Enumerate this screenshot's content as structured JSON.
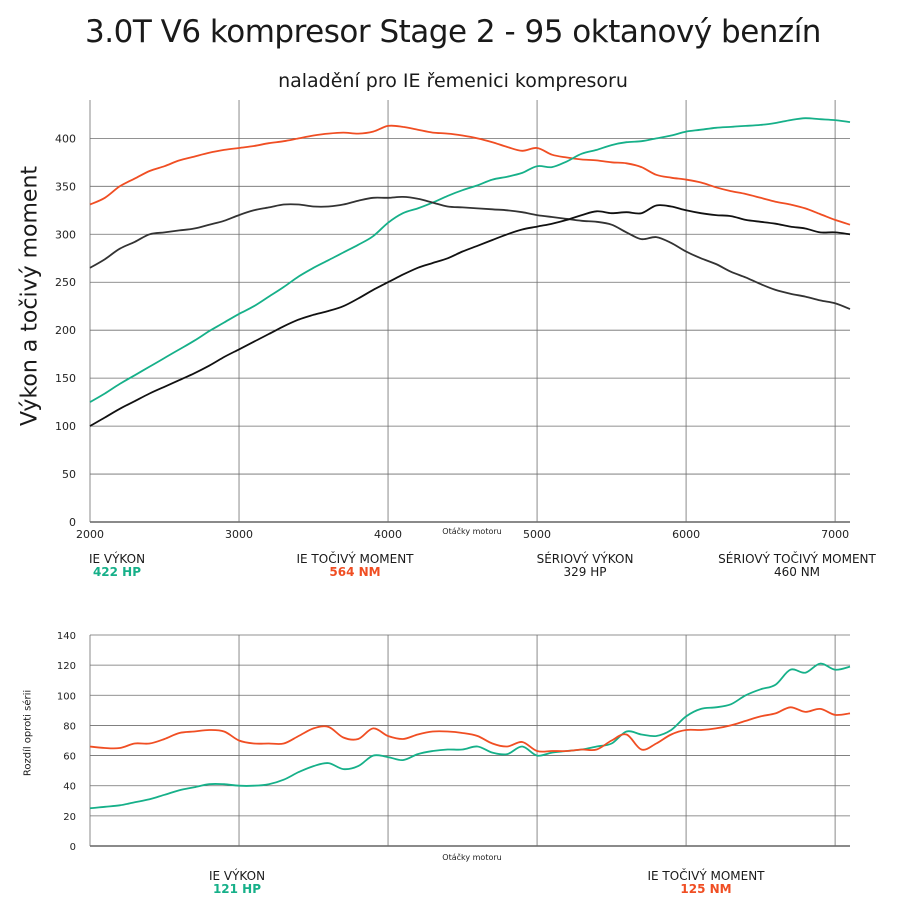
{
  "title": "3.0T V6 kompresor Stage 2 - 95 oktanový benzín",
  "subtitle": "naladění pro IE řemenici kompresoru",
  "chart_data": [
    {
      "type": "line",
      "ylabel": "Výkon a točivý moment",
      "xlabel": "Otáčky motoru",
      "xlim": [
        2000,
        7100
      ],
      "ylim": [
        0,
        440
      ],
      "xticks": [
        2000,
        3000,
        4000,
        5000,
        6000,
        7000
      ],
      "yticks": [
        0,
        50,
        100,
        150,
        200,
        250,
        300,
        350,
        400
      ],
      "grid": true,
      "colors": {
        "ie_power": "#16b089",
        "ie_torque": "#f04e23",
        "stock_power": "#111111",
        "stock_torque": "#333333"
      },
      "series": [
        {
          "name": "IE torque",
          "color_key": "ie_torque",
          "x": [
            2000,
            2100,
            2200,
            2300,
            2400,
            2500,
            2600,
            2700,
            2800,
            2900,
            3000,
            3100,
            3200,
            3300,
            3400,
            3500,
            3600,
            3700,
            3800,
            3900,
            4000,
            4100,
            4200,
            4300,
            4400,
            4500,
            4600,
            4700,
            4800,
            4900,
            5000,
            5100,
            5200,
            5300,
            5400,
            5500,
            5600,
            5700,
            5800,
            5900,
            6000,
            6100,
            6200,
            6300,
            6400,
            6500,
            6600,
            6700,
            6800,
            6900,
            7000,
            7100
          ],
          "y": [
            331,
            338,
            350,
            358,
            366,
            371,
            377,
            381,
            385,
            388,
            390,
            392,
            395,
            397,
            400,
            403,
            405,
            406,
            405,
            407,
            413,
            412,
            409,
            406,
            405,
            403,
            400,
            396,
            391,
            387,
            390,
            383,
            380,
            378,
            377,
            375,
            374,
            370,
            362,
            359,
            357,
            354,
            349,
            345,
            342,
            338,
            334,
            331,
            327,
            321,
            315,
            310
          ]
        },
        {
          "name": "IE power",
          "color_key": "ie_power",
          "x": [
            2000,
            2100,
            2200,
            2300,
            2400,
            2500,
            2600,
            2700,
            2800,
            2900,
            3000,
            3100,
            3200,
            3300,
            3400,
            3500,
            3600,
            3700,
            3800,
            3900,
            4000,
            4100,
            4200,
            4300,
            4400,
            4500,
            4600,
            4700,
            4800,
            4900,
            5000,
            5100,
            5200,
            5300,
            5400,
            5500,
            5600,
            5700,
            5800,
            5900,
            6000,
            6100,
            6200,
            6300,
            6400,
            6500,
            6600,
            6700,
            6800,
            6900,
            7000,
            7100
          ],
          "y": [
            125,
            134,
            144,
            153,
            162,
            171,
            180,
            189,
            199,
            208,
            217,
            225,
            235,
            245,
            256,
            265,
            273,
            281,
            289,
            298,
            312,
            322,
            327,
            333,
            340,
            346,
            351,
            357,
            360,
            364,
            371,
            370,
            376,
            384,
            388,
            393,
            396,
            397,
            400,
            403,
            407,
            409,
            411,
            412,
            413,
            414,
            416,
            419,
            421,
            420,
            419,
            417
          ]
        },
        {
          "name": "Stock torque",
          "color_key": "stock_torque",
          "x": [
            2000,
            2100,
            2200,
            2300,
            2400,
            2500,
            2600,
            2700,
            2800,
            2900,
            3000,
            3100,
            3200,
            3300,
            3400,
            3500,
            3600,
            3700,
            3800,
            3900,
            4000,
            4100,
            4200,
            4300,
            4400,
            4500,
            4600,
            4700,
            4800,
            4900,
            5000,
            5100,
            5200,
            5300,
            5400,
            5500,
            5600,
            5700,
            5800,
            5900,
            6000,
            6100,
            6200,
            6300,
            6400,
            6500,
            6600,
            6700,
            6800,
            6900,
            7000,
            7100
          ],
          "y": [
            265,
            274,
            285,
            292,
            300,
            302,
            304,
            306,
            310,
            314,
            320,
            325,
            328,
            331,
            331,
            329,
            329,
            331,
            335,
            338,
            338,
            339,
            337,
            333,
            329,
            328,
            327,
            326,
            325,
            323,
            320,
            318,
            316,
            314,
            313,
            310,
            302,
            295,
            297,
            291,
            282,
            275,
            269,
            261,
            255,
            248,
            242,
            238,
            235,
            231,
            228,
            222
          ]
        },
        {
          "name": "Stock power",
          "color_key": "stock_power",
          "x": [
            2000,
            2100,
            2200,
            2300,
            2400,
            2500,
            2600,
            2700,
            2800,
            2900,
            3000,
            3100,
            3200,
            3300,
            3400,
            3500,
            3600,
            3700,
            3800,
            3900,
            4000,
            4100,
            4200,
            4300,
            4400,
            4500,
            4600,
            4700,
            4800,
            4900,
            5000,
            5100,
            5200,
            5300,
            5400,
            5500,
            5600,
            5700,
            5800,
            5900,
            6000,
            6100,
            6200,
            6300,
            6400,
            6500,
            6600,
            6700,
            6800,
            6900,
            7000,
            7100
          ],
          "y": [
            100,
            109,
            118,
            126,
            134,
            141,
            148,
            155,
            163,
            172,
            180,
            188,
            196,
            204,
            211,
            216,
            220,
            225,
            233,
            242,
            250,
            258,
            265,
            270,
            275,
            282,
            288,
            294,
            300,
            305,
            308,
            311,
            315,
            320,
            324,
            322,
            323,
            322,
            330,
            329,
            325,
            322,
            320,
            319,
            315,
            313,
            311,
            308,
            306,
            302,
            302,
            300
          ]
        }
      ],
      "legend": [
        {
          "name": "IE VÝKON",
          "value": "422 HP",
          "color_key": "ie_power"
        },
        {
          "name": "IE TOČIVÝ MOMENT",
          "value": "564 NM",
          "color_key": "ie_torque"
        },
        {
          "name": "SÉRIOVÝ VÝKON",
          "value": "329 HP",
          "color_key": "stock_power"
        },
        {
          "name": "SÉRIOVÝ TOČIVÝ MOMENT",
          "value": "460 NM",
          "color_key": "stock_torque"
        }
      ]
    },
    {
      "type": "line",
      "ylabel": "Rozdíl oproti sérii",
      "xlabel": "Otáčky motoru",
      "xlim": [
        2000,
        7100
      ],
      "ylim": [
        0,
        140
      ],
      "xticks": [
        2000,
        3000,
        4000,
        5000,
        6000,
        7000
      ],
      "yticks": [
        0,
        20,
        40,
        60,
        80,
        100,
        120,
        140
      ],
      "grid": true,
      "series": [
        {
          "name": "IE power gain",
          "color_key": "ie_power",
          "x": [
            2000,
            2100,
            2200,
            2300,
            2400,
            2500,
            2600,
            2700,
            2800,
            2900,
            3000,
            3100,
            3200,
            3300,
            3400,
            3500,
            3600,
            3700,
            3800,
            3900,
            4000,
            4100,
            4200,
            4300,
            4400,
            4500,
            4600,
            4700,
            4800,
            4900,
            5000,
            5100,
            5200,
            5300,
            5400,
            5500,
            5600,
            5700,
            5800,
            5900,
            6000,
            6100,
            6200,
            6300,
            6400,
            6500,
            6600,
            6700,
            6800,
            6900,
            7000,
            7100
          ],
          "y": [
            25,
            26,
            27,
            29,
            31,
            34,
            37,
            39,
            41,
            41,
            40,
            40,
            41,
            44,
            49,
            53,
            55,
            51,
            53,
            60,
            59,
            57,
            61,
            63,
            64,
            64,
            66,
            62,
            61,
            66,
            60,
            62,
            63,
            64,
            66,
            68,
            76,
            74,
            73,
            77,
            86,
            91,
            92,
            94,
            100,
            104,
            107,
            117,
            115,
            121,
            117,
            119
          ]
        },
        {
          "name": "IE torque gain",
          "color_key": "ie_torque",
          "x": [
            2000,
            2100,
            2200,
            2300,
            2400,
            2500,
            2600,
            2700,
            2800,
            2900,
            3000,
            3100,
            3200,
            3300,
            3400,
            3500,
            3600,
            3700,
            3800,
            3900,
            4000,
            4100,
            4200,
            4300,
            4400,
            4500,
            4600,
            4700,
            4800,
            4900,
            5000,
            5100,
            5200,
            5300,
            5400,
            5500,
            5600,
            5700,
            5800,
            5900,
            6000,
            6100,
            6200,
            6300,
            6400,
            6500,
            6600,
            6700,
            6800,
            6900,
            7000,
            7100
          ],
          "y": [
            66,
            65,
            65,
            68,
            68,
            71,
            75,
            76,
            77,
            76,
            70,
            68,
            68,
            68,
            73,
            78,
            79,
            72,
            71,
            78,
            73,
            71,
            74,
            76,
            76,
            75,
            73,
            68,
            66,
            69,
            63,
            63,
            63,
            64,
            64,
            70,
            74,
            64,
            68,
            74,
            77,
            77,
            78,
            80,
            83,
            86,
            88,
            92,
            89,
            91,
            87,
            88
          ]
        }
      ],
      "legend": [
        {
          "name": "IE VÝKON",
          "value": "121 HP",
          "color_key": "ie_power"
        },
        {
          "name": "IE TOČIVÝ MOMENT",
          "value": "125 NM",
          "color_key": "ie_torque"
        }
      ]
    }
  ]
}
